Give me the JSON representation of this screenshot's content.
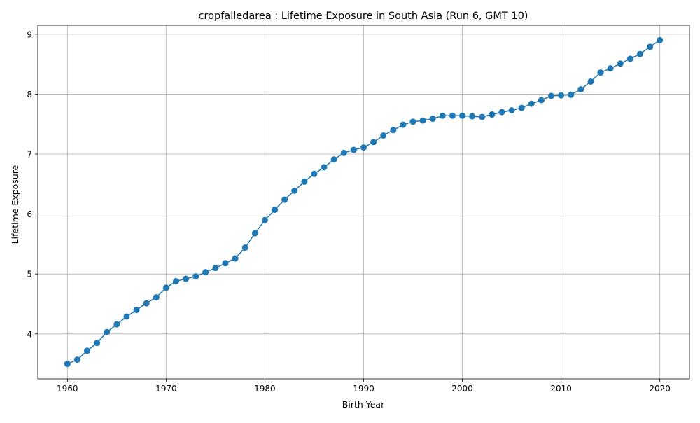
{
  "chart_data": {
    "type": "line",
    "title": "cropfailedarea : Lifetime Exposure in South Asia (Run 6, GMT 10)",
    "xlabel": "Birth Year",
    "ylabel": "Lifetime Exposure",
    "xlim": [
      1957,
      2023
    ],
    "ylim": [
      3.25,
      9.15
    ],
    "xticks": [
      1960,
      1970,
      1980,
      1990,
      2000,
      2010,
      2020
    ],
    "yticks": [
      4,
      5,
      6,
      7,
      8,
      9
    ],
    "grid": true,
    "series_color": "#1f77b4",
    "x": [
      1960,
      1961,
      1962,
      1963,
      1964,
      1965,
      1966,
      1967,
      1968,
      1969,
      1970,
      1971,
      1972,
      1973,
      1974,
      1975,
      1976,
      1977,
      1978,
      1979,
      1980,
      1981,
      1982,
      1983,
      1984,
      1985,
      1986,
      1987,
      1988,
      1989,
      1990,
      1991,
      1992,
      1993,
      1994,
      1995,
      1996,
      1997,
      1998,
      1999,
      2000,
      2001,
      2002,
      2003,
      2004,
      2005,
      2006,
      2007,
      2008,
      2009,
      2010,
      2011,
      2012,
      2013,
      2014,
      2015,
      2016,
      2017,
      2018,
      2019,
      2020
    ],
    "y": [
      3.5,
      3.57,
      3.72,
      3.85,
      4.03,
      4.16,
      4.29,
      4.4,
      4.51,
      4.61,
      4.77,
      4.88,
      4.92,
      4.96,
      5.03,
      5.1,
      5.18,
      5.26,
      5.44,
      5.68,
      5.9,
      6.07,
      6.24,
      6.39,
      6.54,
      6.67,
      6.78,
      6.91,
      7.02,
      7.07,
      7.11,
      7.2,
      7.31,
      7.4,
      7.49,
      7.54,
      7.56,
      7.59,
      7.64,
      7.64,
      7.64,
      7.63,
      7.62,
      7.66,
      7.7,
      7.73,
      7.77,
      7.84,
      7.9,
      7.97,
      7.98,
      7.99,
      8.08,
      8.21,
      8.36,
      8.43,
      8.51,
      8.59,
      8.67,
      8.79,
      8.9
    ]
  }
}
